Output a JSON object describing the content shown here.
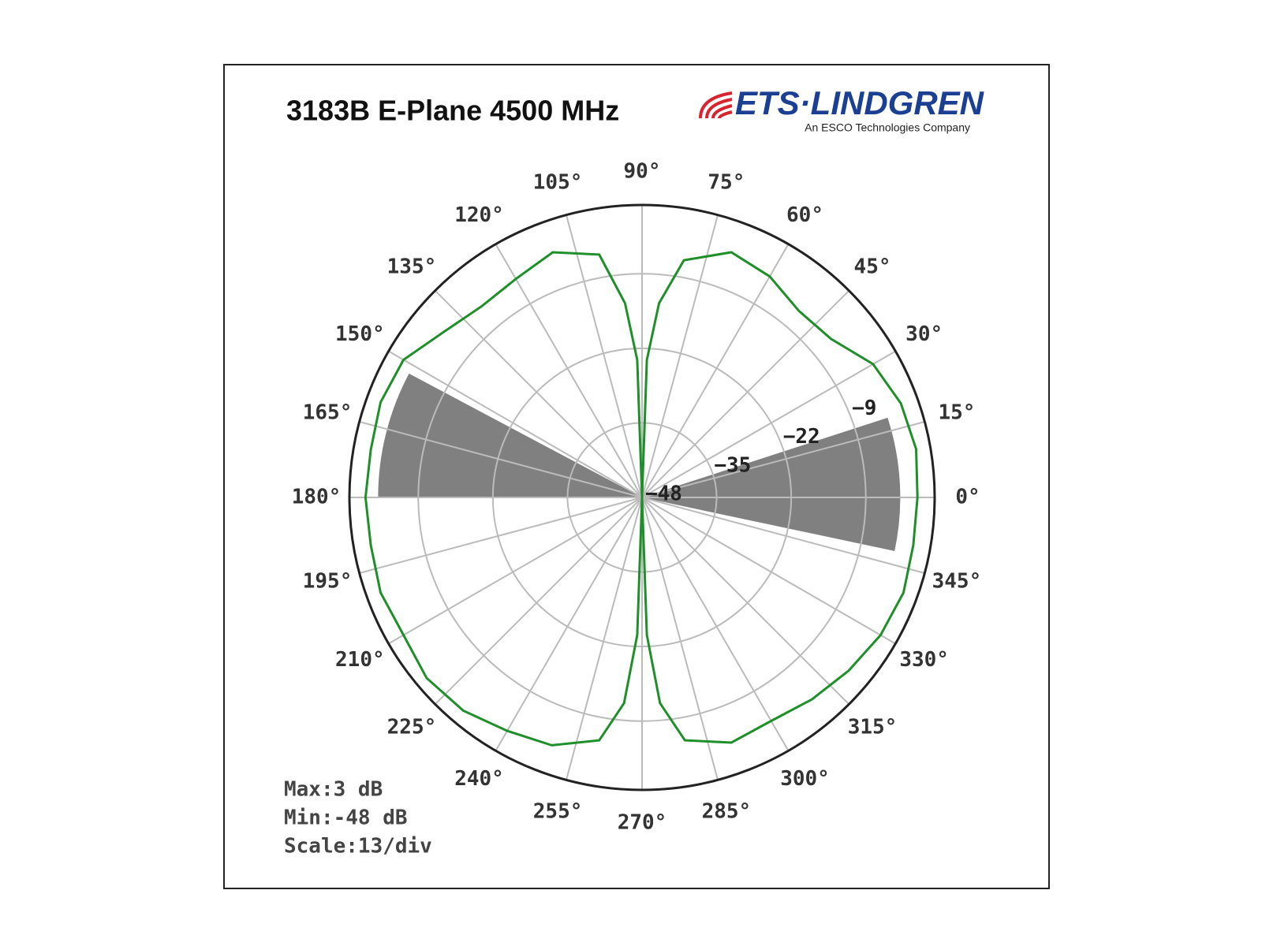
{
  "chart_data": {
    "type": "polar",
    "title": "3183B E-Plane 4500 MHz",
    "logo": {
      "name": "ETS·LINDGREN",
      "tagline": "An ESCO Technologies Company"
    },
    "theta": [
      0,
      10,
      20,
      30,
      40,
      50,
      60,
      70,
      80,
      85,
      88,
      90,
      92,
      95,
      100,
      110,
      120,
      130,
      140,
      150,
      160,
      170,
      180,
      190,
      200,
      210,
      220,
      230,
      240,
      250,
      260,
      265,
      268,
      270,
      272,
      275,
      280,
      290,
      300,
      310,
      320,
      330,
      340,
      350
    ],
    "values": [
      0,
      0.5,
      0,
      -1.5,
      -5,
      -5.5,
      -3.5,
      -2.5,
      -6,
      -14,
      -24,
      -48,
      -24,
      -14,
      -5,
      -2.5,
      -4,
      -4.5,
      -3,
      0,
      0.5,
      0,
      0.2,
      0,
      0.5,
      0,
      1,
      0.5,
      -1,
      -2,
      -5,
      -12,
      -24,
      -48,
      -24,
      -12,
      -5,
      -2.5,
      -3,
      -2,
      -1,
      0,
      0.5,
      0
    ],
    "color": "#1f8f2a",
    "sectors": [
      {
        "theta_start": 348,
        "theta_end": 18,
        "r": -3
      },
      {
        "theta_start": 152,
        "theta_end": 180,
        "r": -2
      }
    ],
    "sector_color": "#808080",
    "rlim": [
      -48,
      3
    ],
    "rticks": [
      {
        "value": -48,
        "label": "−48"
      },
      {
        "value": -35,
        "label": "−35"
      },
      {
        "value": -22,
        "label": "−22"
      },
      {
        "value": -9,
        "label": "−9"
      }
    ],
    "thetaticks": [
      {
        "value": 0,
        "label": "0°"
      },
      {
        "value": 15,
        "label": "15°"
      },
      {
        "value": 30,
        "label": "30°"
      },
      {
        "value": 45,
        "label": "45°"
      },
      {
        "value": 60,
        "label": "60°"
      },
      {
        "value": 75,
        "label": "75°"
      },
      {
        "value": 90,
        "label": "90°"
      },
      {
        "value": 105,
        "label": "105°"
      },
      {
        "value": 120,
        "label": "120°"
      },
      {
        "value": 135,
        "label": "135°"
      },
      {
        "value": 150,
        "label": "150°"
      },
      {
        "value": 165,
        "label": "165°"
      },
      {
        "value": 180,
        "label": "180°"
      },
      {
        "value": 195,
        "label": "195°"
      },
      {
        "value": 210,
        "label": "210°"
      },
      {
        "value": 225,
        "label": "225°"
      },
      {
        "value": 240,
        "label": "240°"
      },
      {
        "value": 255,
        "label": "255°"
      },
      {
        "value": 270,
        "label": "270°"
      },
      {
        "value": 285,
        "label": "285°"
      },
      {
        "value": 300,
        "label": "300°"
      },
      {
        "value": 315,
        "label": "315°"
      },
      {
        "value": 330,
        "label": "330°"
      },
      {
        "value": 345,
        "label": "345°"
      }
    ],
    "grid": true,
    "annotations": [
      "Max:3 dB",
      "Min:-48 dB",
      "Scale:13/div"
    ]
  }
}
